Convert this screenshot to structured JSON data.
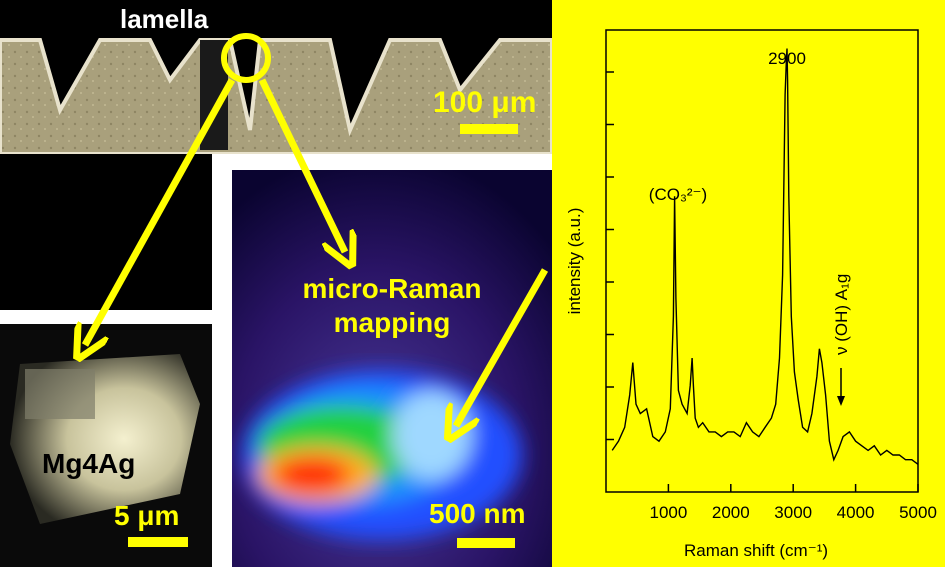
{
  "optical": {
    "lamella_label": "lamella",
    "scale_label": "100 μm"
  },
  "tem": {
    "sample_label": "Mg4Ag",
    "scale_label": "5 μm"
  },
  "raman_map": {
    "title_line1": "micro-Raman",
    "title_line2": "mapping",
    "scale_label": "500 nm"
  },
  "colors": {
    "accent": "#ffff00",
    "background": "#000000"
  },
  "chart_data": {
    "type": "line",
    "title": "",
    "xlabel": "Raman shift (cm⁻¹)",
    "ylabel": "intensity (a.u.)",
    "xlim": [
      0,
      5000
    ],
    "x_ticks": [
      1000,
      2000,
      3000,
      4000,
      5000
    ],
    "ylim": [
      0,
      100
    ],
    "y_tick_labels_shown": false,
    "series": [
      {
        "name": "spectrum",
        "x": [
          100,
          200,
          300,
          380,
          430,
          480,
          550,
          650,
          750,
          850,
          950,
          1030,
          1080,
          1100,
          1120,
          1160,
          1220,
          1300,
          1350,
          1380,
          1400,
          1430,
          1480,
          1550,
          1650,
          1750,
          1850,
          1950,
          2050,
          2150,
          2250,
          2350,
          2450,
          2550,
          2650,
          2720,
          2780,
          2830,
          2870,
          2890,
          2900,
          2910,
          2930,
          2970,
          3020,
          3080,
          3150,
          3230,
          3300,
          3380,
          3420,
          3460,
          3520,
          3580,
          3650,
          3720,
          3800,
          3900,
          4000,
          4100,
          4200,
          4300,
          4400,
          4500,
          4600,
          4700,
          4800,
          4900,
          5000
        ],
        "y": [
          9,
          11,
          14,
          21,
          28,
          19,
          17,
          18,
          12,
          11,
          13,
          18,
          38,
          64,
          42,
          22,
          19,
          17,
          23,
          29,
          23,
          16,
          14,
          15,
          13,
          13,
          12,
          13,
          13,
          12,
          15,
          13,
          12,
          14,
          16,
          19,
          29,
          47,
          86,
          93,
          96,
          89,
          64,
          38,
          26,
          20,
          14,
          13,
          17,
          25,
          31,
          28,
          21,
          11,
          7,
          9,
          12,
          13,
          11,
          10,
          9,
          10,
          8,
          9,
          8,
          8,
          7,
          7,
          6
        ]
      }
    ],
    "annotations": [
      {
        "text": "2900",
        "x": 2900
      },
      {
        "text": "(CO₃²⁻)",
        "x": 1100
      },
      {
        "text": "ν (OH) A₁g",
        "x": 3780
      }
    ]
  }
}
